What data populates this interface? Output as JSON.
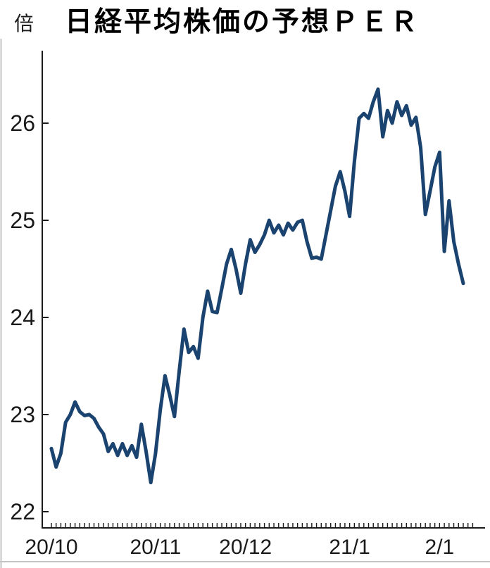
{
  "chart_header": {
    "unit_label": "倍",
    "title": "日経平均株価の予想ＰＥＲ"
  },
  "chart_data": {
    "type": "line",
    "title": "日経平均株価の予想ＰＥＲ",
    "unit": "倍",
    "series_name": "日経平均株価の予想PER",
    "x_dates": [
      "10/1",
      "10/2",
      "10/5",
      "10/6",
      "10/7",
      "10/8",
      "10/9",
      "10/12",
      "10/13",
      "10/14",
      "10/15",
      "10/16",
      "10/19",
      "10/20",
      "10/21",
      "10/22",
      "10/23",
      "10/26",
      "10/27",
      "10/28",
      "10/29",
      "10/30",
      "11/2",
      "11/4",
      "11/5",
      "11/6",
      "11/9",
      "11/10",
      "11/11",
      "11/12",
      "11/13",
      "11/16",
      "11/17",
      "11/18",
      "11/19",
      "11/20",
      "11/24",
      "11/25",
      "11/26",
      "11/27",
      "11/30",
      "12/1",
      "12/2",
      "12/3",
      "12/4",
      "12/7",
      "12/8",
      "12/9",
      "12/10",
      "12/11",
      "12/14",
      "12/15",
      "12/16",
      "12/17",
      "12/18",
      "12/21",
      "12/22",
      "12/23",
      "12/24",
      "12/25",
      "12/28",
      "12/29",
      "12/30",
      "1/4",
      "1/5",
      "1/6",
      "1/7",
      "1/8",
      "1/12",
      "1/13",
      "1/14",
      "1/15",
      "1/18",
      "1/19",
      "1/20",
      "1/21",
      "1/22",
      "1/25",
      "1/26",
      "1/27",
      "1/28",
      "1/29",
      "2/1",
      "2/2",
      "2/3",
      "2/4",
      "2/5",
      "2/8"
    ],
    "values": [
      22.65,
      22.46,
      22.6,
      22.92,
      23.0,
      23.13,
      23.03,
      22.99,
      23.0,
      22.96,
      22.87,
      22.8,
      22.62,
      22.7,
      22.58,
      22.7,
      22.58,
      22.68,
      22.56,
      22.9,
      22.62,
      22.3,
      22.6,
      23.05,
      23.4,
      23.2,
      22.98,
      23.45,
      23.88,
      23.64,
      23.7,
      23.58,
      24.0,
      24.27,
      24.06,
      24.05,
      24.3,
      24.55,
      24.7,
      24.5,
      24.25,
      24.55,
      24.8,
      24.67,
      24.75,
      24.85,
      25.0,
      24.87,
      24.95,
      24.85,
      24.97,
      24.9,
      24.98,
      25.0,
      24.78,
      24.61,
      24.62,
      24.6,
      24.85,
      25.1,
      25.35,
      25.5,
      25.3,
      25.04,
      25.6,
      26.05,
      26.1,
      26.05,
      26.22,
      26.35,
      25.86,
      26.13,
      26.0,
      26.22,
      26.08,
      26.18,
      25.98,
      26.06,
      25.75,
      25.06,
      25.3,
      25.55,
      25.7,
      24.68,
      25.2,
      24.78,
      24.55,
      24.35
    ],
    "month_ticks": [
      {
        "label": "20/10",
        "index": 0
      },
      {
        "label": "20/11",
        "index": 22
      },
      {
        "label": "20/12",
        "index": 41
      },
      {
        "label": "21/1",
        "index": 63
      },
      {
        "label": "2/1",
        "index": 82
      }
    ],
    "yticks": [
      22,
      23,
      24,
      25,
      26
    ],
    "ylim": [
      22,
      26.9
    ],
    "grid": false,
    "legend_position": "none",
    "line_color": "#1b4370",
    "axis_color": "#1a1a1a",
    "text_color": "#1a1a1a",
    "border_color": "#c4c4c4"
  }
}
